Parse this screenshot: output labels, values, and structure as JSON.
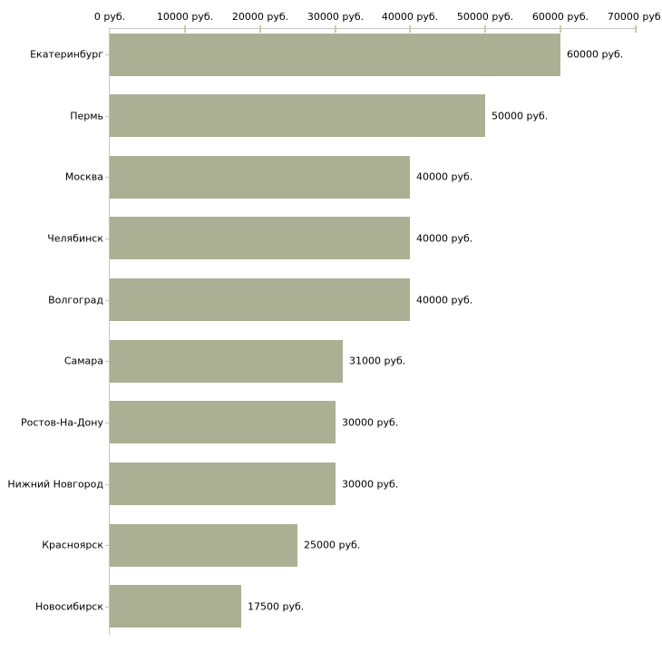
{
  "chart_data": {
    "type": "bar",
    "orientation": "horizontal",
    "title": "",
    "xlabel": "",
    "ylabel": "",
    "legend": "none",
    "grid": "off",
    "categories": [
      "Екатеринбург",
      "Пермь",
      "Москва",
      "Челябинск",
      "Волгоград",
      "Самара",
      "Ростов-На-Дону",
      "Нижний Новгород",
      "Красноярск",
      "Новосибирск"
    ],
    "values": [
      60000,
      50000,
      40000,
      40000,
      40000,
      31000,
      30000,
      30000,
      25000,
      17500
    ],
    "value_labels": [
      "60000 руб.",
      "50000 руб.",
      "40000 руб.",
      "40000 руб.",
      "40000 руб.",
      "31000 руб.",
      "30000 руб.",
      "30000 руб.",
      "25000 руб.",
      "17500 руб."
    ],
    "x_axis": {
      "position": "top",
      "min": 0,
      "max": 70000,
      "tick_step": 10000,
      "tick_values": [
        0,
        10000,
        20000,
        30000,
        40000,
        50000,
        60000,
        70000
      ],
      "tick_labels": [
        "0 руб.",
        "10000 руб.",
        "20000 руб.",
        "30000 руб.",
        "40000 руб.",
        "50000 руб.",
        "60000 руб.",
        "70000 руб."
      ]
    },
    "colors": {
      "bar": "#abb094",
      "axis_line": "#c5c5c5",
      "tick_mark": "#cbcba3",
      "text": "#000000",
      "background": "#ffffff"
    }
  }
}
